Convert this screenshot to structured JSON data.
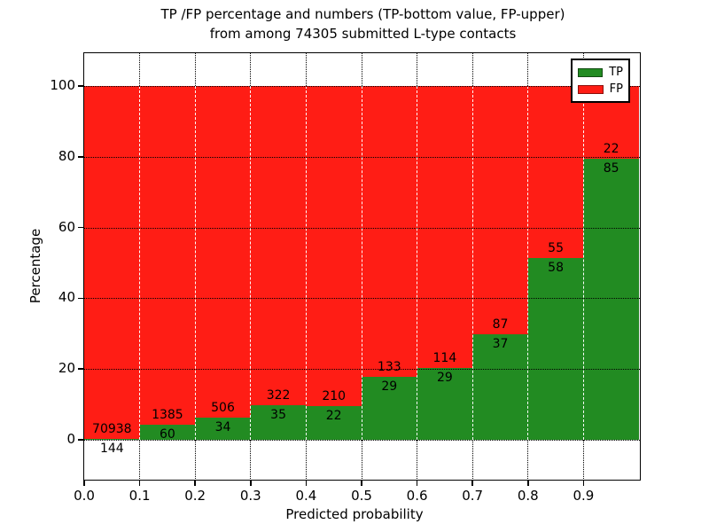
{
  "chart_data": {
    "type": "bar",
    "stacked": true,
    "normalized_to_percent": true,
    "title_line1": "TP /FP percentage and numbers (TP-bottom value, FP-upper)",
    "title_line2": "from among 74305 submitted L-type contacts",
    "total_submitted": 74305,
    "xlabel": "Predicted probability",
    "ylabel": "Percentage",
    "x_tick_labels": [
      "0.0",
      "0.1",
      "0.2",
      "0.3",
      "0.4",
      "0.5",
      "0.6",
      "0.7",
      "0.8",
      "0.9"
    ],
    "y_ticks": [
      0,
      20,
      40,
      60,
      80,
      100
    ],
    "xlim": [
      0.0,
      1.0
    ],
    "ylim_percent": [
      0,
      100
    ],
    "grid": true,
    "legend_position": "upper right",
    "bins": [
      {
        "range": "0.0-0.1",
        "tp": 144,
        "fp": 70938
      },
      {
        "range": "0.1-0.2",
        "tp": 60,
        "fp": 1385
      },
      {
        "range": "0.2-0.3",
        "tp": 34,
        "fp": 506
      },
      {
        "range": "0.3-0.4",
        "tp": 35,
        "fp": 322
      },
      {
        "range": "0.4-0.5",
        "tp": 22,
        "fp": 210
      },
      {
        "range": "0.5-0.6",
        "tp": 29,
        "fp": 133
      },
      {
        "range": "0.6-0.7",
        "tp": 29,
        "fp": 114
      },
      {
        "range": "0.7-0.8",
        "tp": 37,
        "fp": 87
      },
      {
        "range": "0.8-0.9",
        "tp": 58,
        "fp": 55
      },
      {
        "range": "0.9-1.0",
        "tp": 85,
        "fp": 22
      }
    ],
    "legend": [
      {
        "label": "TP",
        "color": "#228b22"
      },
      {
        "label": "FP",
        "color": "#ff1d15"
      }
    ],
    "colors": {
      "tp": "#228b22",
      "fp": "#ff1d15",
      "grid": "#000000",
      "background": "#ffffff",
      "text": "#000000"
    }
  }
}
